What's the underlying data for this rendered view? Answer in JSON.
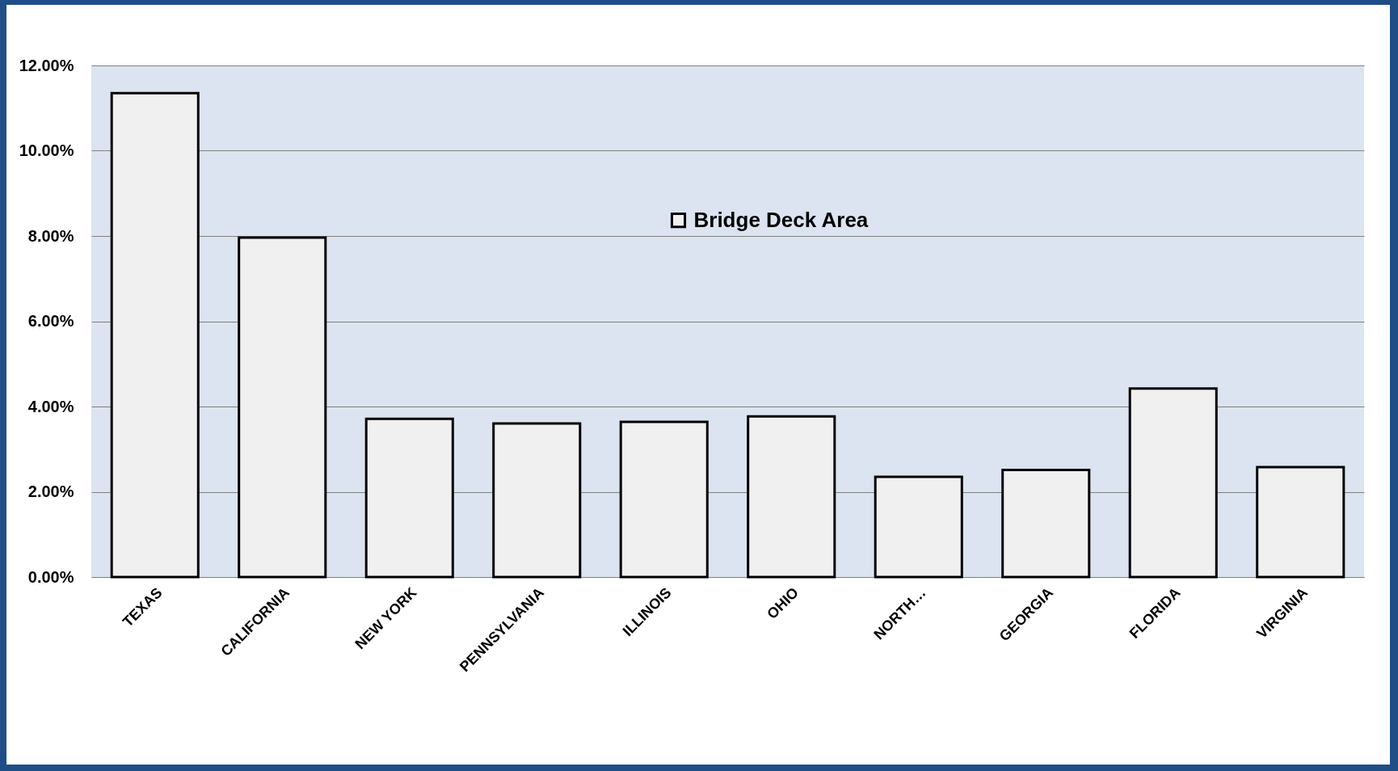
{
  "chart_data": {
    "type": "bar",
    "categories": [
      "TEXAS",
      "CALIFORNIA",
      "NEW YORK",
      "PENNSYLVANIA",
      "ILLINOIS",
      "OHIO",
      "NORTH…",
      "GEORGIA",
      "FLORIDA",
      "VIRGINIA"
    ],
    "series": [
      {
        "name": "Bridge Deck Area",
        "color": "#f0f0f0",
        "values": [
          11.35,
          7.96,
          3.71,
          3.6,
          3.64,
          3.77,
          2.35,
          2.51,
          4.42,
          2.58
        ]
      }
    ],
    "ylim": [
      0,
      12
    ],
    "yticks": [
      {
        "value": 0,
        "label": "0.00%"
      },
      {
        "value": 2,
        "label": "2.00%"
      },
      {
        "value": 4,
        "label": "4.00%"
      },
      {
        "value": 6,
        "label": "6.00%"
      },
      {
        "value": 8,
        "label": "8.00%"
      },
      {
        "value": 10,
        "label": "10.00%"
      },
      {
        "value": 12,
        "label": "12.00%"
      }
    ],
    "grid": "y",
    "legend": "top"
  }
}
